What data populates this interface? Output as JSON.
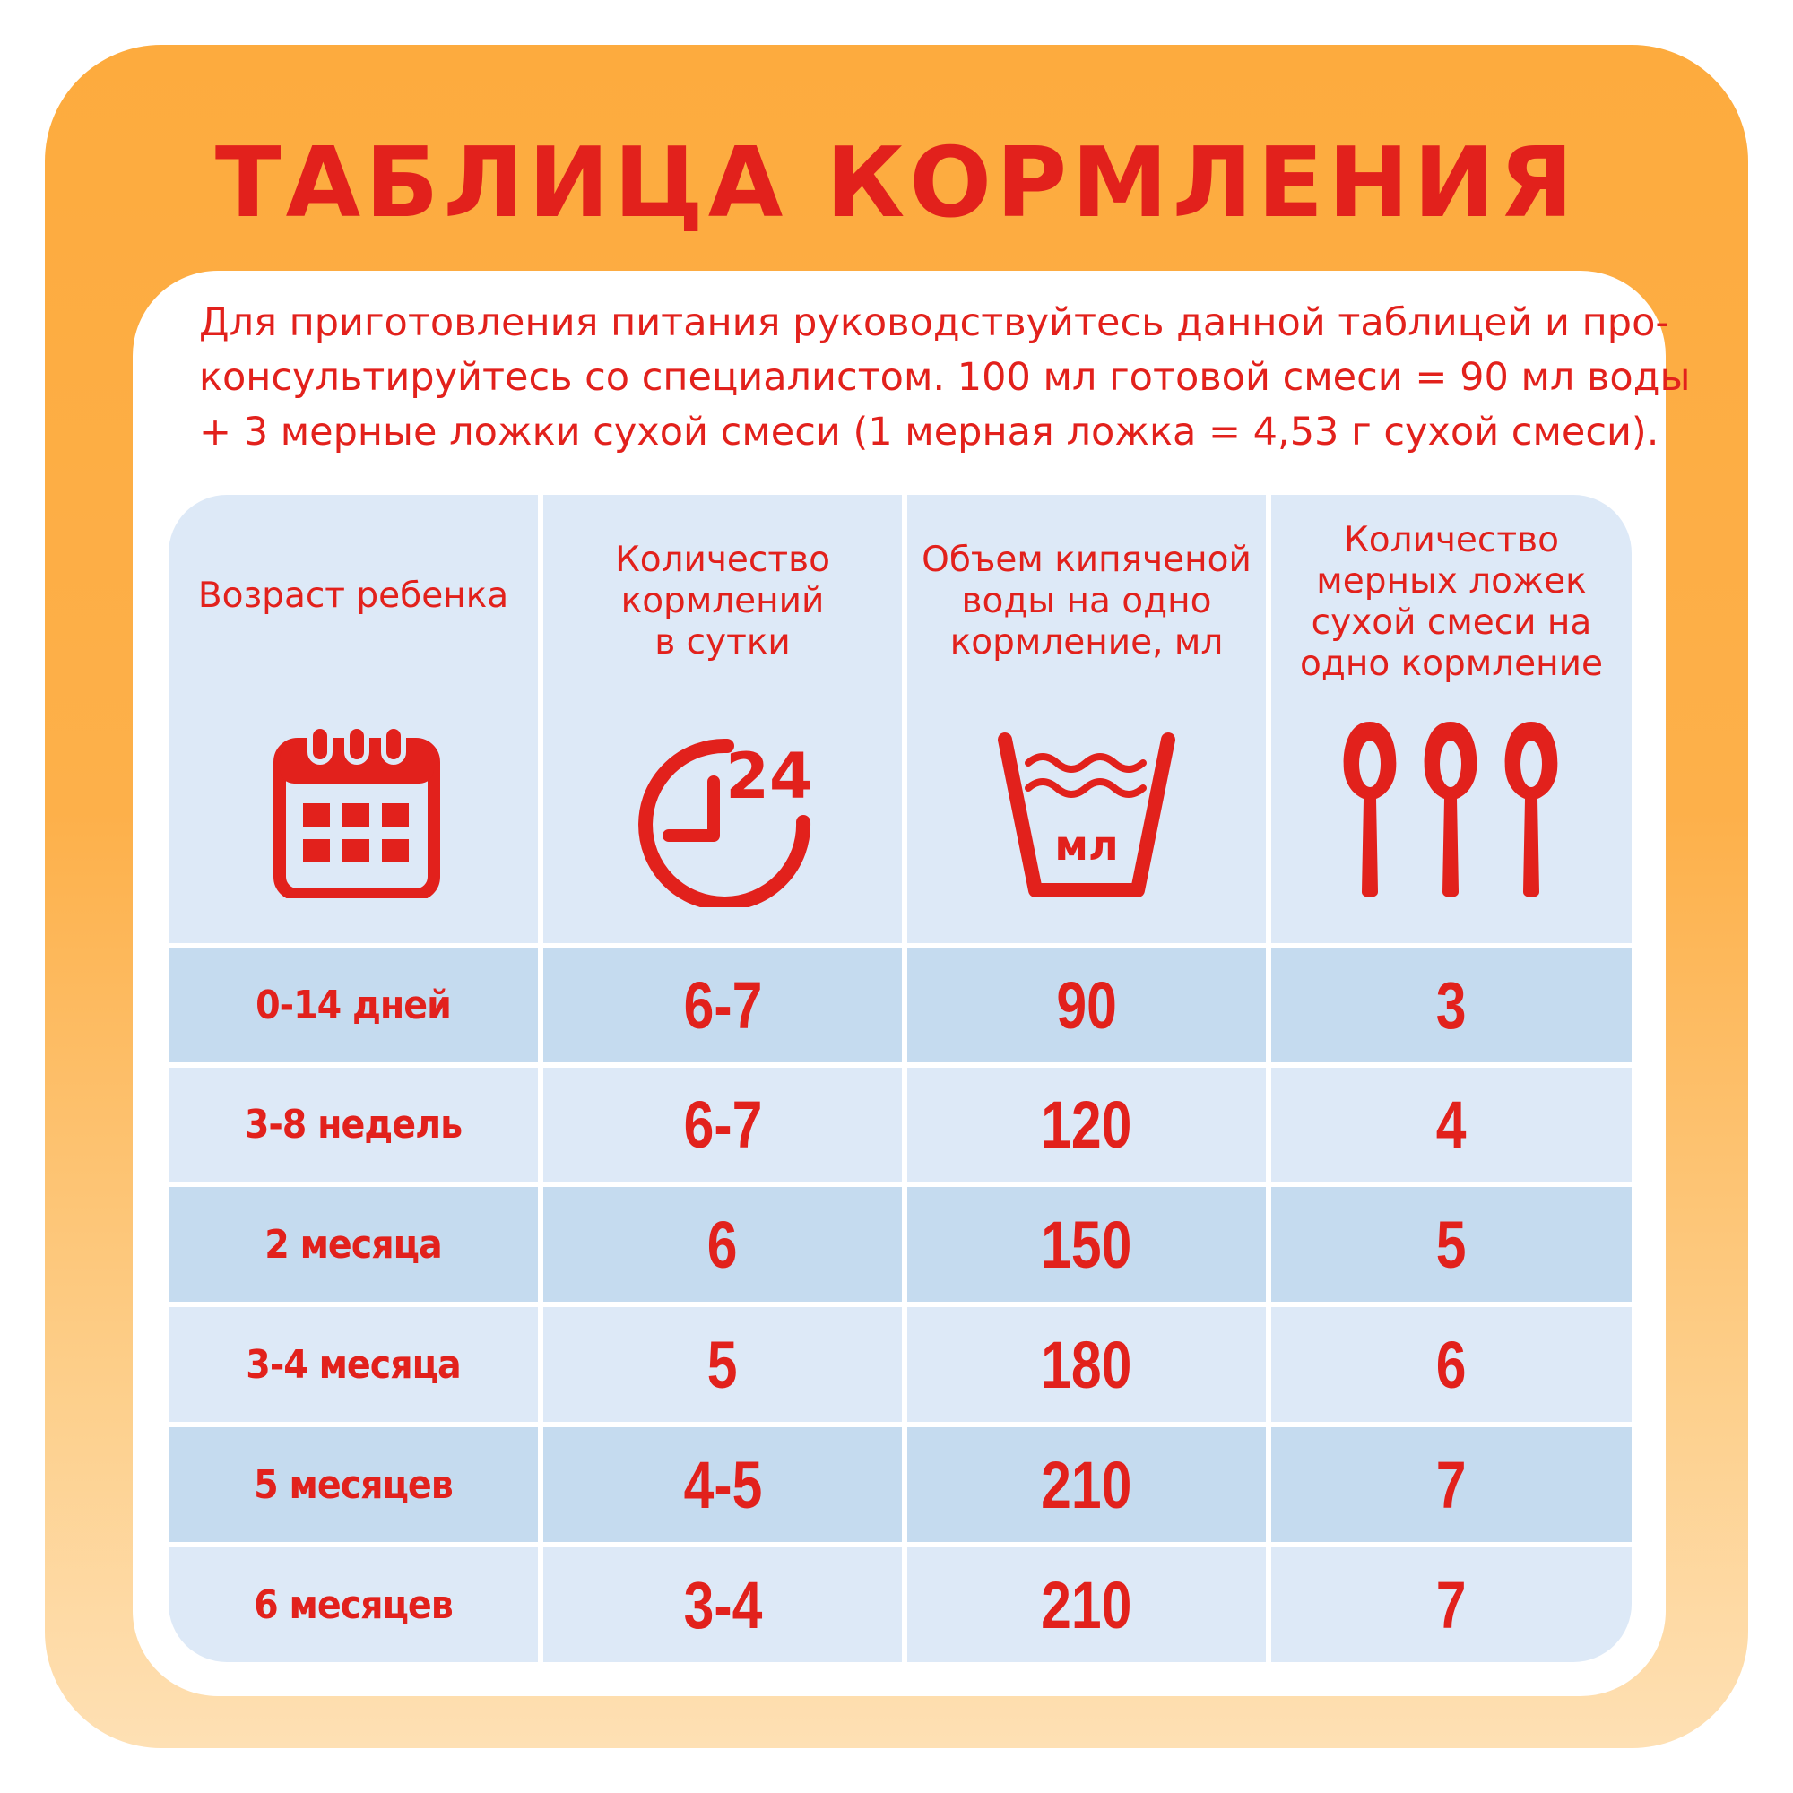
{
  "title": "ТАБЛИЦА КОРМЛЕНИЯ",
  "intro_lines": [
    "Для приготовления питания руководствуйтесь данной таблицей и про-",
    "консультируйтесь со специалистом. 100 мл готовой смеси = 90 мл воды",
    "+ 3 мерные ложки сухой смеси (1 мерная ложка = 4,53 г сухой смеси)."
  ],
  "headers": [
    {
      "lines": [
        "Возраст ребенка"
      ],
      "icon": "calendar-icon"
    },
    {
      "lines": [
        "Количество",
        "кормлений",
        "в сутки"
      ],
      "icon": "clock-24-icon"
    },
    {
      "lines": [
        "Объем кипяченой",
        "воды на одно",
        "кормление, мл"
      ],
      "icon": "measuring-cup-icon"
    },
    {
      "lines": [
        "Количество",
        "мерных ложек",
        "сухой смеси на",
        "одно кормление"
      ],
      "icon": "spoons-icon"
    }
  ],
  "cup_label": "мл",
  "clock_label": "24",
  "rows": [
    {
      "age": "0-14 дней",
      "feedings": "6-7",
      "water": "90",
      "spoons": "3"
    },
    {
      "age": "3-8 недель",
      "feedings": "6-7",
      "water": "120",
      "spoons": "4"
    },
    {
      "age": "2 месяца",
      "feedings": "6",
      "water": "150",
      "spoons": "5"
    },
    {
      "age": "3-4 месяца",
      "feedings": "5",
      "water": "180",
      "spoons": "6"
    },
    {
      "age": "5 месяцев",
      "feedings": "4-5",
      "water": "210",
      "spoons": "7"
    },
    {
      "age": "6 месяцев",
      "feedings": "3-4",
      "water": "210",
      "spoons": "7"
    }
  ],
  "colors": {
    "accent": "#e2211c",
    "orange": "#fdab3e",
    "header_bg": "#dde9f7",
    "row_dark": "#c5dbef",
    "row_light": "#dde9f7"
  }
}
